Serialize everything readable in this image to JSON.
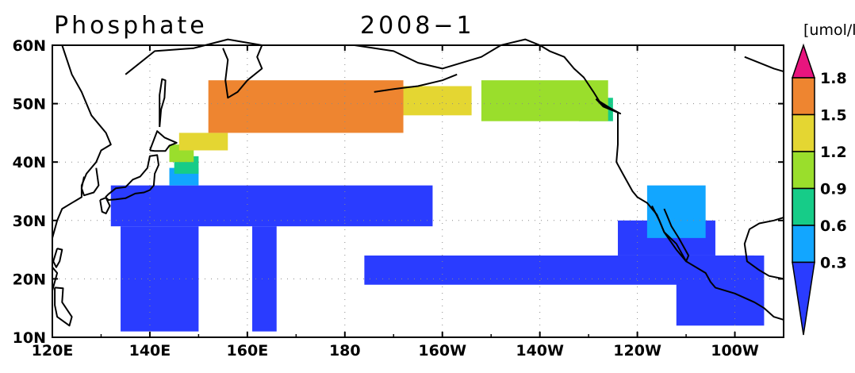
{
  "title": "Phosphate",
  "date": "2008−1",
  "unit": "[umol/l]",
  "x_axis": {
    "labels": [
      "120E",
      "140E",
      "160E",
      "180",
      "160W",
      "140W",
      "120W",
      "100W"
    ],
    "lon_range": [
      120,
      270
    ]
  },
  "y_axis": {
    "labels": [
      "10N",
      "20N",
      "30N",
      "40N",
      "50N",
      "60N"
    ],
    "lat_range": [
      10,
      60
    ]
  },
  "colorbar": {
    "ticks": [
      "0.3",
      "0.6",
      "0.9",
      "1.2",
      "1.5",
      "1.8"
    ],
    "colors": [
      "#2a3cff",
      "#12a6ff",
      "#16cc88",
      "#9ade2c",
      "#e4d632",
      "#ee8530",
      "#e8157e"
    ]
  },
  "chart_data": {
    "type": "heatmap",
    "title": "Phosphate",
    "subtitle": "2008−1",
    "xlabel": "",
    "ylabel": "",
    "legend": "right",
    "grid": true,
    "xlim": [
      120,
      270
    ],
    "ylim": [
      10,
      60
    ],
    "levels": [
      0.3,
      0.6,
      0.9,
      1.2,
      1.5,
      1.8
    ],
    "regions": [
      {
        "class": 0,
        "lon": [
          132,
          198
        ],
        "lat": [
          29,
          36
        ],
        "level_below": 0.3
      },
      {
        "class": 0,
        "lon": [
          134,
          150
        ],
        "lat": [
          11,
          29
        ],
        "level_below": 0.3
      },
      {
        "class": 0,
        "lon": [
          161,
          166
        ],
        "lat": [
          11,
          29
        ],
        "level_below": 0.3
      },
      {
        "class": 0,
        "lon": [
          184,
          264
        ],
        "lat": [
          19,
          24
        ],
        "level_below": 0.3
      },
      {
        "class": 0,
        "lon": [
          248,
          266
        ],
        "lat": [
          12,
          24
        ],
        "level_below": 0.3
      },
      {
        "class": 0,
        "lon": [
          236,
          256
        ],
        "lat": [
          24,
          30
        ],
        "level_below": 0.3
      },
      {
        "class": 1,
        "lon": [
          242,
          254
        ],
        "lat": [
          27,
          36
        ],
        "level_range": [
          0.3,
          0.6
        ]
      },
      {
        "class": 1,
        "lon": [
          144,
          150
        ],
        "lat": [
          36,
          39
        ],
        "level_range": [
          0.3,
          0.6
        ]
      },
      {
        "class": 2,
        "lon": [
          145,
          150
        ],
        "lat": [
          38,
          41
        ],
        "level_range": [
          0.6,
          0.9
        ]
      },
      {
        "class": 2,
        "lon": [
          228,
          235
        ],
        "lat": [
          47,
          51
        ],
        "level_range": [
          0.6,
          0.9
        ]
      },
      {
        "class": 3,
        "lon": [
          144,
          149
        ],
        "lat": [
          40,
          43
        ],
        "level_range": [
          0.9,
          1.2
        ]
      },
      {
        "class": 3,
        "lon": [
          208,
          234
        ],
        "lat": [
          47,
          54
        ],
        "level_range": [
          0.9,
          1.2
        ]
      },
      {
        "class": 4,
        "lon": [
          182,
          206
        ],
        "lat": [
          48,
          53
        ],
        "level_range": [
          1.2,
          1.5
        ]
      },
      {
        "class": 4,
        "lon": [
          146,
          156
        ],
        "lat": [
          42,
          45
        ],
        "level_range": [
          1.2,
          1.5
        ]
      },
      {
        "class": 5,
        "lon": [
          152,
          192
        ],
        "lat": [
          45,
          54
        ],
        "level_range": [
          1.5,
          1.8
        ]
      }
    ]
  }
}
